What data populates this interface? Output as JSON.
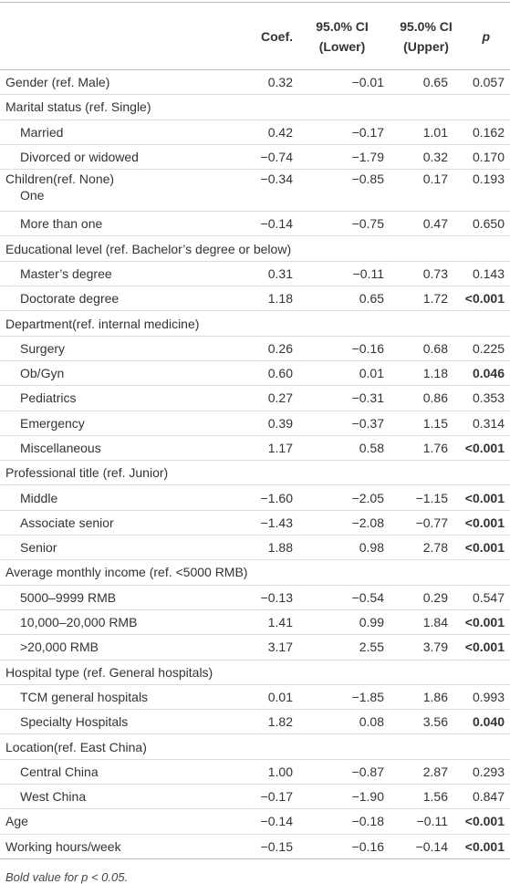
{
  "table": {
    "columns": [
      "Coef.",
      "95.0% CI (Lower)",
      "95.0% CI (Upper)",
      "p"
    ],
    "rows": [
      {
        "label": "Gender (ref. Male)",
        "values": [
          "0.32",
          "−0.01",
          "0.65",
          "0.057"
        ]
      },
      {
        "label": "Marital status (ref. Single)",
        "rows": [
          {
            "label": "Married",
            "values": [
              "0.42",
              "−0.17",
              "1.01",
              "0.162"
            ]
          },
          {
            "label": "Divorced or widowed",
            "values": [
              "−0.74",
              "−1.79",
              "0.32",
              "0.170"
            ]
          }
        ]
      },
      {
        "label": "Children(ref. None)",
        "values": [
          "−0.34",
          "−0.85",
          "0.17",
          "0.193"
        ],
        "rows": [
          {
            "label": "One"
          },
          {
            "label": "More than one",
            "values": [
              "−0.14",
              "−0.75",
              "0.47",
              "0.650"
            ]
          }
        ]
      },
      {
        "label": "Educational level (ref. Bachelor’s degree or below)",
        "rows": [
          {
            "label": "Master’s degree",
            "values": [
              "0.31",
              "−0.11",
              "0.73",
              "0.143"
            ]
          },
          {
            "label": "Doctorate degree",
            "values": [
              "1.18",
              "0.65",
              "1.72",
              "<0.001"
            ],
            "p_bold": true
          }
        ]
      },
      {
        "label": "Department(ref. internal medicine)",
        "rows": [
          {
            "label": "Surgery",
            "values": [
              "0.26",
              "−0.16",
              "0.68",
              "0.225"
            ]
          },
          {
            "label": "Ob/Gyn",
            "values": [
              "0.60",
              "0.01",
              "1.18",
              "0.046"
            ],
            "p_bold": true
          },
          {
            "label": "Pediatrics",
            "values": [
              "0.27",
              "−0.31",
              "0.86",
              "0.353"
            ]
          },
          {
            "label": "Emergency",
            "values": [
              "0.39",
              "−0.37",
              "1.15",
              "0.314"
            ]
          },
          {
            "label": "Miscellaneous",
            "values": [
              "1.17",
              "0.58",
              "1.76",
              "<0.001"
            ],
            "p_bold": true
          }
        ]
      },
      {
        "label": "Professional title (ref. Junior)",
        "rows": [
          {
            "label": "Middle",
            "values": [
              "−1.60",
              "−2.05",
              "−1.15",
              "<0.001"
            ],
            "p_bold": true
          },
          {
            "label": "Associate senior",
            "values": [
              "−1.43",
              "−2.08",
              "−0.77",
              "<0.001"
            ],
            "p_bold": true
          },
          {
            "label": "Senior",
            "values": [
              "1.88",
              "0.98",
              "2.78",
              "<0.001"
            ],
            "p_bold": true
          }
        ]
      },
      {
        "label": "Average monthly income (ref. <5000 RMB)",
        "rows": [
          {
            "label": "5000–9999 RMB",
            "values": [
              "−0.13",
              "−0.54",
              "0.29",
              "0.547"
            ]
          },
          {
            "label": "10,000–20,000 RMB",
            "values": [
              "1.41",
              "0.99",
              "1.84",
              "<0.001"
            ],
            "p_bold": true
          },
          {
            "label": ">20,000 RMB",
            "values": [
              "3.17",
              "2.55",
              "3.79",
              "<0.001"
            ],
            "p_bold": true
          }
        ]
      },
      {
        "label": "Hospital type (ref. General hospitals)",
        "rows": [
          {
            "label": "TCM general hospitals",
            "values": [
              "0.01",
              "−1.85",
              "1.86",
              "0.993"
            ]
          },
          {
            "label": "Specialty Hospitals",
            "values": [
              "1.82",
              "0.08",
              "3.56",
              "0.040"
            ],
            "p_bold": true
          }
        ]
      },
      {
        "label": "Location(ref. East China)",
        "rows": [
          {
            "label": "Central China",
            "values": [
              "1.00",
              "−0.87",
              "2.87",
              "0.293"
            ]
          },
          {
            "label": "West China",
            "values": [
              "−0.17",
              "−1.90",
              "1.56",
              "0.847"
            ]
          }
        ]
      },
      {
        "label": "Age",
        "values": [
          "−0.14",
          "−0.18",
          "−0.11",
          "<0.001"
        ],
        "p_bold": true
      },
      {
        "label": "Working hours/week",
        "values": [
          "−0.15",
          "−0.16",
          "−0.14",
          "<0.001"
        ],
        "p_bold": true
      }
    ],
    "note": "Bold value for p < 0.05."
  }
}
